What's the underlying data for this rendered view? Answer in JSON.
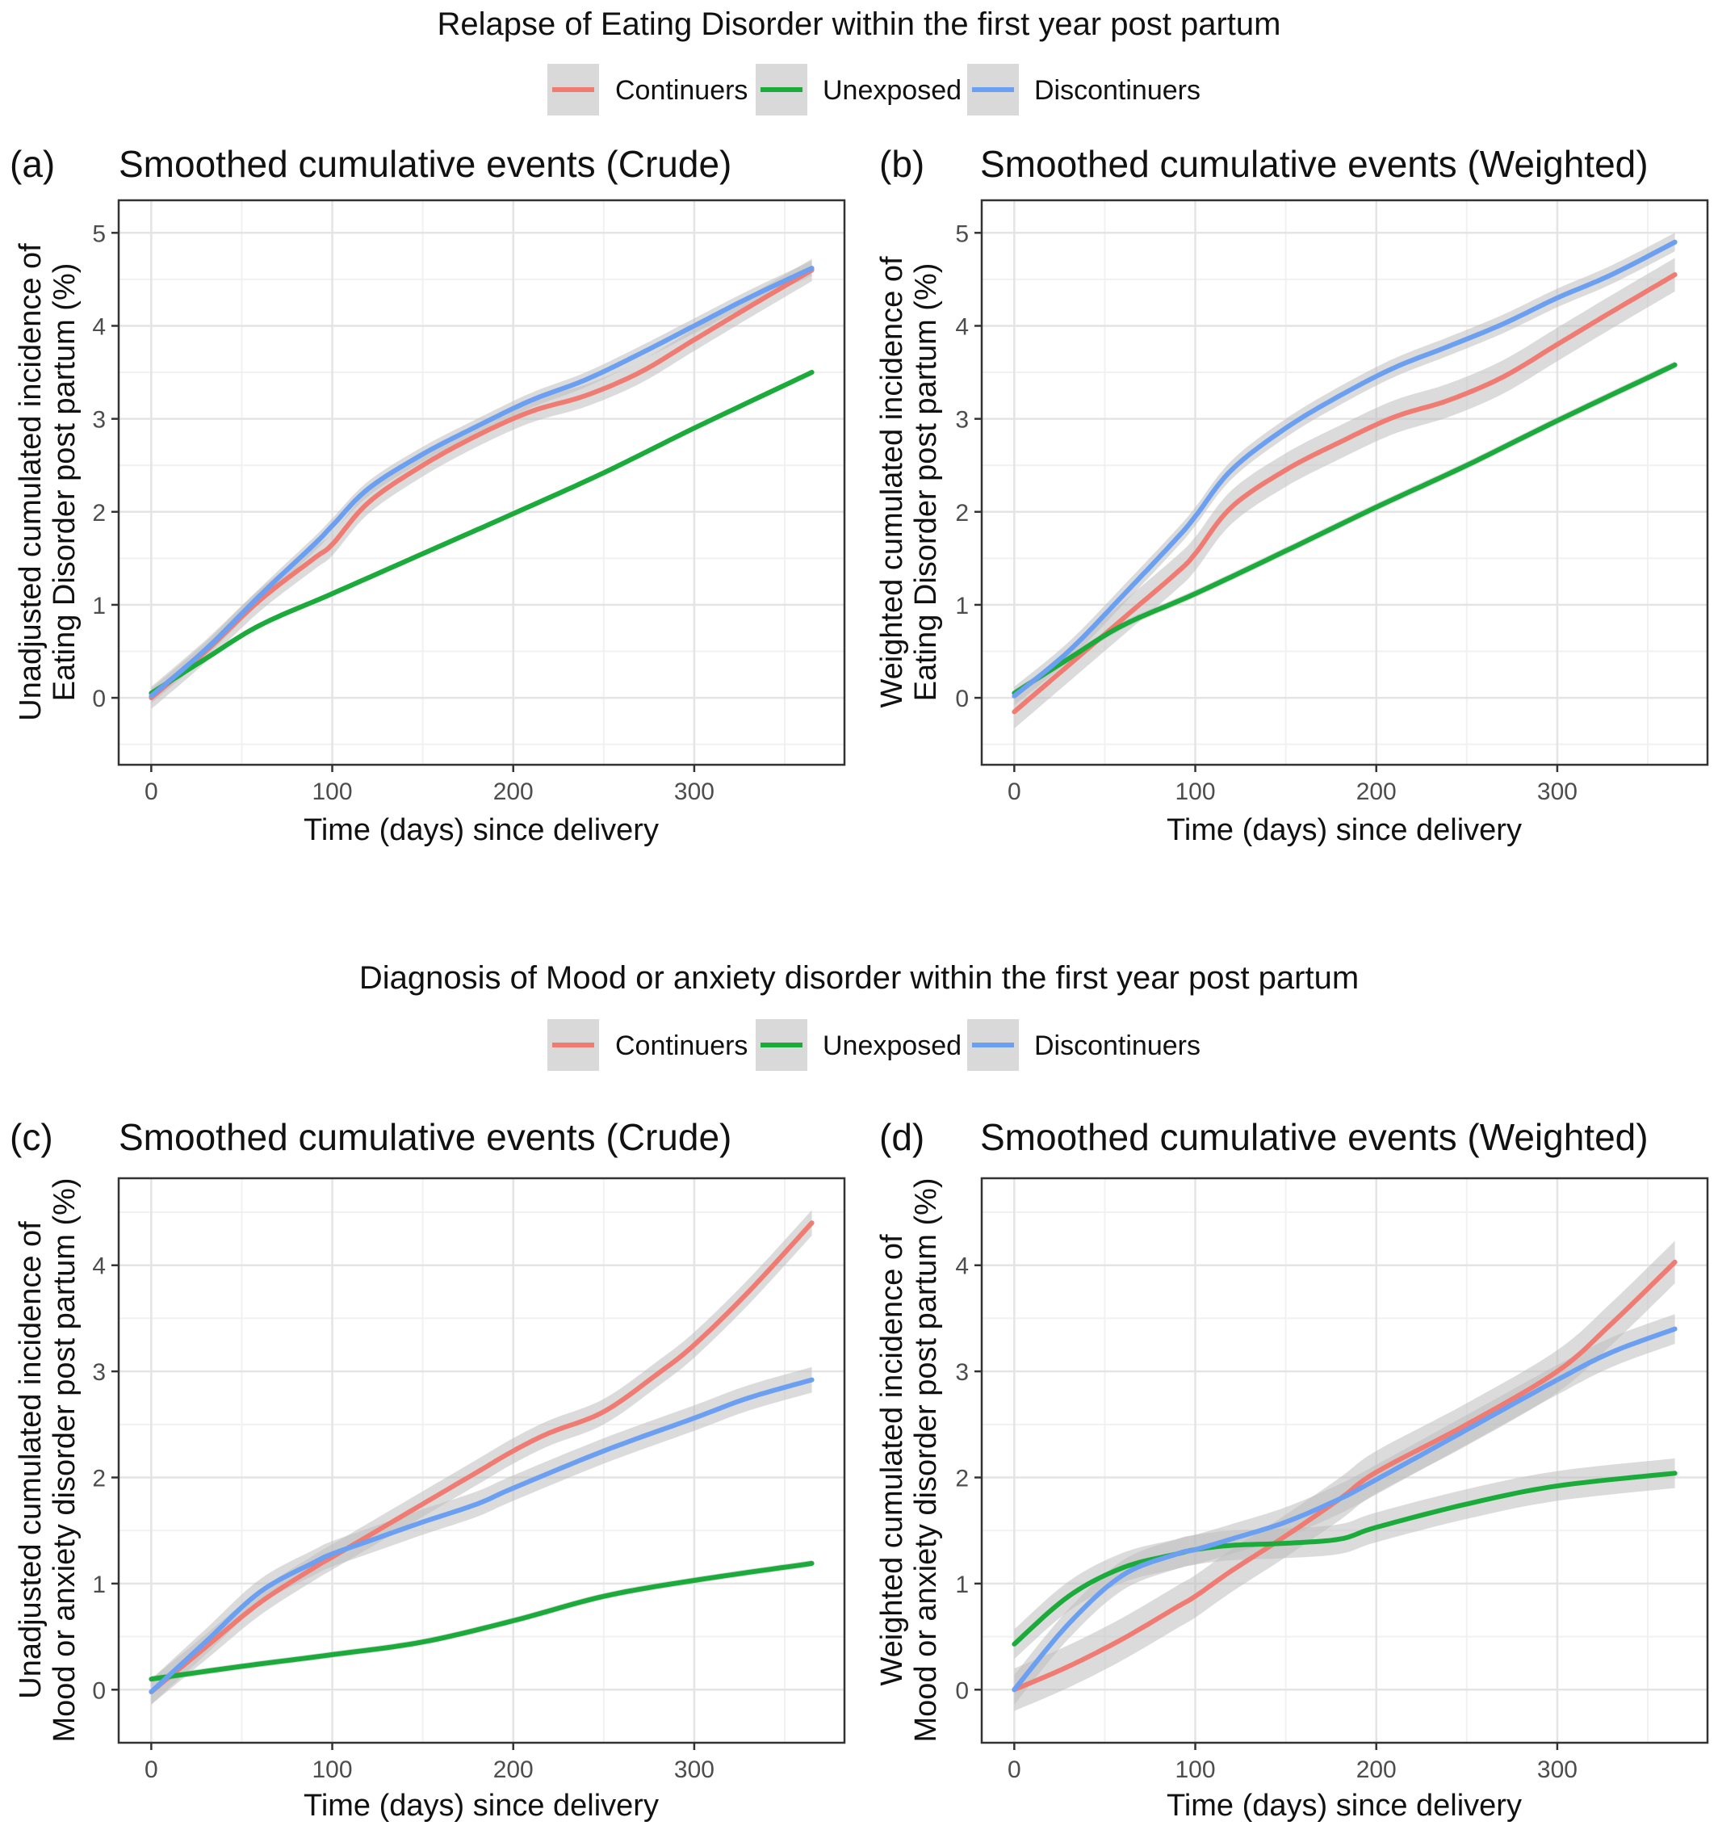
{
  "colors": {
    "Continuers": "#f07b72",
    "Unexposed": "#1aab3b",
    "Discontinuers": "#6b9ff2",
    "band": "#bdbdbd",
    "grid_major": "#e4e4e4",
    "grid_minor": "#f1f1f1",
    "axis": "#333333",
    "tick_label": "#4d4d4d"
  },
  "sections": [
    {
      "title": "Relapse of Eating Disorder within the first year post partum",
      "legend": [
        "Continuers",
        "Unexposed",
        "Discontinuers"
      ]
    },
    {
      "title": "Diagnosis of Mood or anxiety disorder within the first year post partum",
      "legend": [
        "Continuers",
        "Unexposed",
        "Discontinuers"
      ]
    }
  ],
  "chart_data": [
    {
      "panel": "(a)",
      "type": "line",
      "title": "Smoothed cumulative events (Crude)",
      "xlabel": "Time (days) since delivery",
      "ylabel": [
        "Unadjusted cumulated incidence of",
        "Eating Disorder post partum (%)"
      ],
      "xlim": [
        -18,
        383
      ],
      "ylim": [
        -0.72,
        5.35
      ],
      "xticks": [
        0,
        100,
        200,
        300
      ],
      "yticks": [
        0,
        1,
        2,
        3,
        4,
        5
      ],
      "grid": true,
      "series": [
        {
          "name": "Continuers",
          "band": 0.12,
          "x": [
            0,
            30,
            60,
            90,
            100,
            120,
            150,
            180,
            210,
            240,
            270,
            300,
            330,
            365
          ],
          "y": [
            0.0,
            0.5,
            1.05,
            1.5,
            1.65,
            2.1,
            2.5,
            2.82,
            3.08,
            3.25,
            3.5,
            3.85,
            4.2,
            4.6
          ]
        },
        {
          "name": "Unexposed",
          "band": 0.03,
          "x": [
            0,
            30,
            60,
            100,
            150,
            200,
            250,
            300,
            365
          ],
          "y": [
            0.05,
            0.42,
            0.78,
            1.12,
            1.55,
            1.98,
            2.42,
            2.9,
            3.5
          ]
        },
        {
          "name": "Discontinuers",
          "band": 0.08,
          "x": [
            0,
            30,
            60,
            90,
            100,
            120,
            150,
            180,
            210,
            240,
            270,
            300,
            330,
            365
          ],
          "y": [
            0.02,
            0.52,
            1.1,
            1.65,
            1.85,
            2.25,
            2.62,
            2.92,
            3.2,
            3.42,
            3.7,
            4.0,
            4.3,
            4.62
          ]
        }
      ]
    },
    {
      "panel": "(b)",
      "type": "line",
      "title": "Smoothed cumulative events (Weighted)",
      "xlabel": "Time (days) since delivery",
      "ylabel": [
        "Weighted cumulated incidence of",
        "Eating Disorder post partum (%)"
      ],
      "xlim": [
        -18,
        383
      ],
      "ylim": [
        -0.72,
        5.35
      ],
      "xticks": [
        0,
        100,
        200,
        300
      ],
      "yticks": [
        0,
        1,
        2,
        3,
        4,
        5
      ],
      "grid": true,
      "series": [
        {
          "name": "Continuers",
          "band": 0.18,
          "x": [
            0,
            30,
            60,
            90,
            100,
            120,
            150,
            180,
            210,
            240,
            270,
            300,
            330,
            365
          ],
          "y": [
            -0.15,
            0.35,
            0.85,
            1.35,
            1.55,
            2.05,
            2.45,
            2.75,
            3.02,
            3.2,
            3.45,
            3.8,
            4.15,
            4.55
          ]
        },
        {
          "name": "Unexposed",
          "band": 0.04,
          "x": [
            0,
            30,
            60,
            100,
            150,
            200,
            250,
            300,
            365
          ],
          "y": [
            0.05,
            0.42,
            0.78,
            1.12,
            1.58,
            2.05,
            2.5,
            2.98,
            3.58
          ]
        },
        {
          "name": "Discontinuers",
          "band": 0.1,
          "x": [
            0,
            30,
            60,
            90,
            100,
            120,
            150,
            180,
            210,
            240,
            270,
            300,
            330,
            365
          ],
          "y": [
            0.02,
            0.5,
            1.1,
            1.72,
            1.95,
            2.45,
            2.9,
            3.25,
            3.55,
            3.78,
            4.02,
            4.3,
            4.55,
            4.9
          ]
        }
      ]
    },
    {
      "panel": "(c)",
      "type": "line",
      "title": "Smoothed cumulative events (Crude)",
      "xlabel": "Time (days) since delivery",
      "ylabel": [
        "Unadjusted cumulated incidence of",
        "Mood or anxiety disorder post partum (%)"
      ],
      "xlim": [
        -18,
        383
      ],
      "ylim": [
        -0.5,
        4.82
      ],
      "xticks": [
        0,
        100,
        200,
        300
      ],
      "yticks": [
        0,
        1,
        2,
        3,
        4
      ],
      "grid": true,
      "series": [
        {
          "name": "Continuers",
          "band": 0.12,
          "x": [
            0,
            30,
            60,
            90,
            100,
            120,
            150,
            180,
            200,
            220,
            250,
            280,
            300,
            330,
            365
          ],
          "y": [
            -0.02,
            0.4,
            0.82,
            1.15,
            1.25,
            1.45,
            1.75,
            2.05,
            2.25,
            2.42,
            2.62,
            2.98,
            3.25,
            3.75,
            4.4
          ]
        },
        {
          "name": "Unexposed",
          "band": 0.03,
          "x": [
            0,
            50,
            100,
            150,
            200,
            250,
            300,
            365
          ],
          "y": [
            0.1,
            0.22,
            0.33,
            0.45,
            0.65,
            0.88,
            1.03,
            1.19
          ]
        },
        {
          "name": "Discontinuers",
          "band": 0.12,
          "x": [
            0,
            30,
            60,
            90,
            100,
            120,
            150,
            180,
            200,
            250,
            300,
            330,
            365
          ],
          "y": [
            -0.02,
            0.45,
            0.92,
            1.2,
            1.28,
            1.4,
            1.58,
            1.75,
            1.9,
            2.25,
            2.56,
            2.75,
            2.92
          ]
        }
      ]
    },
    {
      "panel": "(d)",
      "type": "line",
      "title": "Smoothed cumulative events (Weighted)",
      "xlabel": "Time (days) since delivery",
      "ylabel": [
        "Weighted cumulated incidence of",
        "Mood or anxiety disorder post partum (%)"
      ],
      "xlim": [
        -18,
        383
      ],
      "ylim": [
        -0.5,
        4.82
      ],
      "xticks": [
        0,
        100,
        200,
        300
      ],
      "yticks": [
        0,
        1,
        2,
        3,
        4
      ],
      "grid": true,
      "series": [
        {
          "name": "Continuers",
          "band": 0.2,
          "x": [
            0,
            30,
            60,
            90,
            100,
            120,
            150,
            180,
            200,
            250,
            300,
            330,
            365
          ],
          "y": [
            0.0,
            0.22,
            0.48,
            0.78,
            0.88,
            1.12,
            1.45,
            1.8,
            2.05,
            2.5,
            3.0,
            3.45,
            4.03
          ]
        },
        {
          "name": "Unexposed",
          "band": 0.14,
          "x": [
            0,
            30,
            60,
            90,
            100,
            120,
            150,
            180,
            200,
            250,
            300,
            365
          ],
          "y": [
            0.43,
            0.88,
            1.15,
            1.28,
            1.32,
            1.36,
            1.38,
            1.42,
            1.53,
            1.75,
            1.92,
            2.04
          ]
        },
        {
          "name": "Discontinuers",
          "band": 0.14,
          "x": [
            0,
            30,
            60,
            90,
            100,
            120,
            150,
            180,
            200,
            250,
            300,
            330,
            365
          ],
          "y": [
            0.0,
            0.62,
            1.08,
            1.28,
            1.32,
            1.42,
            1.58,
            1.8,
            1.98,
            2.45,
            2.92,
            3.18,
            3.4
          ]
        }
      ]
    }
  ]
}
